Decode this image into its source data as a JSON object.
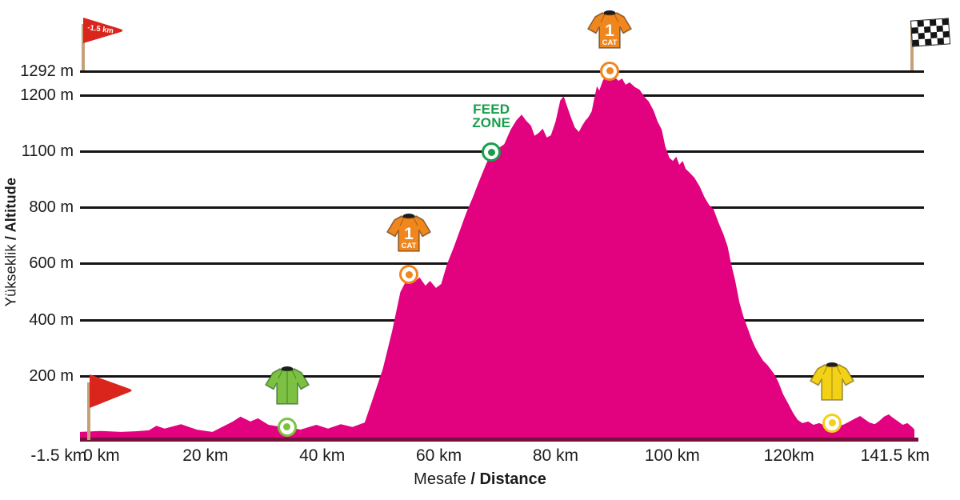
{
  "chart_data": {
    "type": "area",
    "xlabel": {
      "part1": "Mesafe",
      "part2": "/ Distance"
    },
    "ylabel": {
      "part1": "Yükseklik",
      "part2": "/ Altitude"
    },
    "x_range_km": [
      -1.5,
      141.5
    ],
    "grid": true,
    "legend": "none",
    "profile_color": "#E2017E",
    "baseline_color": "#77113B",
    "y_ticks": [
      {
        "label": "1292 m",
        "value": 1292
      },
      {
        "label": "1200 m",
        "value": 1200
      },
      {
        "label": "1100 m",
        "value": 1100
      },
      {
        "label": "800 m",
        "value": 800
      },
      {
        "label": "600 m",
        "value": 600
      },
      {
        "label": "400 m",
        "value": 400
      },
      {
        "label": "200 m",
        "value": 200
      }
    ],
    "x_ticks": [
      {
        "label": "-1.5 km",
        "km": -1.5
      },
      {
        "label": "0 km",
        "km": 0
      },
      {
        "label": "20 km",
        "km": 20
      },
      {
        "label": "40 km",
        "km": 40
      },
      {
        "label": "60 km",
        "km": 60
      },
      {
        "label": "80 km",
        "km": 80
      },
      {
        "label": "100 km",
        "km": 100
      },
      {
        "label": "120km",
        "km": 120
      },
      {
        "label": "141.5 km",
        "km": 141.5
      }
    ],
    "profile_km_m": [
      [
        -1.5,
        25
      ],
      [
        2,
        28
      ],
      [
        5.5,
        25
      ],
      [
        8,
        27
      ],
      [
        10.3,
        30
      ],
      [
        11.6,
        44
      ],
      [
        13,
        35
      ],
      [
        15.8,
        49
      ],
      [
        18.5,
        32
      ],
      [
        21.2,
        25
      ],
      [
        24.7,
        57
      ],
      [
        26,
        72
      ],
      [
        27.7,
        57
      ],
      [
        29,
        67
      ],
      [
        30.8,
        47
      ],
      [
        32.5,
        42
      ],
      [
        34,
        40
      ],
      [
        36.3,
        32
      ],
      [
        39,
        47
      ],
      [
        41,
        35
      ],
      [
        43.2,
        49
      ],
      [
        45.2,
        40
      ],
      [
        47.3,
        54
      ],
      [
        48.6,
        123
      ],
      [
        50.4,
        222
      ],
      [
        52,
        358
      ],
      [
        53.4,
        495
      ],
      [
        54.9,
        557
      ],
      [
        55.9,
        533
      ],
      [
        56.7,
        547
      ],
      [
        57.7,
        518
      ],
      [
        58.5,
        535
      ],
      [
        59.5,
        510
      ],
      [
        60.4,
        524
      ],
      [
        61.4,
        594
      ],
      [
        62.5,
        651
      ],
      [
        63.6,
        714
      ],
      [
        64.7,
        777
      ],
      [
        65.8,
        847
      ],
      [
        66.8,
        928
      ],
      [
        68,
        1019
      ],
      [
        69,
        1091
      ],
      [
        70.1,
        1103
      ],
      [
        71.2,
        1111
      ],
      [
        72.3,
        1137
      ],
      [
        73.3,
        1154
      ],
      [
        74.2,
        1164
      ],
      [
        74.9,
        1154
      ],
      [
        75.8,
        1144
      ],
      [
        76.4,
        1126
      ],
      [
        77.1,
        1131
      ],
      [
        77.8,
        1139
      ],
      [
        78.5,
        1123
      ],
      [
        79.2,
        1127
      ],
      [
        80,
        1151
      ],
      [
        80.8,
        1189
      ],
      [
        81.4,
        1197
      ],
      [
        81.9,
        1181
      ],
      [
        82.6,
        1160
      ],
      [
        83.3,
        1141
      ],
      [
        84,
        1133
      ],
      [
        84.5,
        1143
      ],
      [
        85.1,
        1153
      ],
      [
        85.6,
        1159
      ],
      [
        86.2,
        1170
      ],
      [
        86.7,
        1196
      ],
      [
        87.1,
        1231
      ],
      [
        87.5,
        1215
      ],
      [
        88.1,
        1252
      ],
      [
        88.6,
        1271
      ],
      [
        89.3,
        1290
      ],
      [
        90.1,
        1267
      ],
      [
        90.8,
        1252
      ],
      [
        91.4,
        1261
      ],
      [
        92,
        1237
      ],
      [
        92.7,
        1246
      ],
      [
        93.6,
        1228
      ],
      [
        94.4,
        1218
      ],
      [
        95.2,
        1196
      ],
      [
        96,
        1187
      ],
      [
        96.8,
        1171
      ],
      [
        97.5,
        1151
      ],
      [
        98.2,
        1137
      ],
      [
        98.8,
        1107
      ],
      [
        99.5,
        1061
      ],
      [
        100.1,
        1044
      ],
      [
        100.7,
        1066
      ],
      [
        101.2,
        1023
      ],
      [
        101.8,
        1044
      ],
      [
        102.3,
        1001
      ],
      [
        103,
        980
      ],
      [
        103.8,
        954
      ],
      [
        104.7,
        907
      ],
      [
        105.5,
        851
      ],
      [
        106.3,
        808
      ],
      [
        107.1,
        789
      ],
      [
        107.9,
        744
      ],
      [
        108.8,
        699
      ],
      [
        109.5,
        656
      ],
      [
        110.1,
        594
      ],
      [
        110.8,
        534
      ],
      [
        111.5,
        460
      ],
      [
        112.2,
        409
      ],
      [
        112.9,
        369
      ],
      [
        113.6,
        329
      ],
      [
        114.2,
        300
      ],
      [
        114.9,
        274
      ],
      [
        115.6,
        251
      ],
      [
        116.3,
        237
      ],
      [
        116.8,
        223
      ],
      [
        117.5,
        203
      ],
      [
        118.2,
        178
      ],
      [
        119,
        141
      ],
      [
        119.9,
        111
      ],
      [
        120.7,
        84
      ],
      [
        121.5,
        62
      ],
      [
        122.3,
        52
      ],
      [
        123.3,
        57
      ],
      [
        124.2,
        47
      ],
      [
        125.2,
        52
      ],
      [
        126.2,
        44
      ],
      [
        127.4,
        52
      ],
      [
        128.5,
        42
      ],
      [
        129.5,
        49
      ],
      [
        130.4,
        57
      ],
      [
        131.4,
        67
      ],
      [
        132.2,
        74
      ],
      [
        133,
        64
      ],
      [
        133.8,
        54
      ],
      [
        134.7,
        49
      ],
      [
        135.5,
        59
      ],
      [
        136.3,
        72
      ],
      [
        137.1,
        79
      ],
      [
        137.8,
        69
      ],
      [
        138.6,
        59
      ],
      [
        139.5,
        47
      ],
      [
        140.3,
        52
      ],
      [
        141.1,
        40
      ],
      [
        141.5,
        32
      ]
    ]
  },
  "markers": {
    "cat1_first": {
      "km": 54.9,
      "m": 557,
      "number": "1",
      "cat": "CAT",
      "color": "#F0861E"
    },
    "cat1_summit": {
      "km": 89.3,
      "m": 1290,
      "number": "1",
      "cat": "CAT",
      "color": "#F0861E"
    },
    "feed_zone": {
      "km": 69,
      "m": 1091,
      "label": "FEED ZONE",
      "color": "#179E4B"
    },
    "sprint_green": {
      "km": 34,
      "m": 40,
      "color": "#7CC142"
    },
    "leader_yellow": {
      "km": 127.4,
      "m": 52,
      "color": "#F2D116"
    }
  },
  "flags": {
    "neutral_start": {
      "label": "-1.5 km",
      "color": "#D9251C"
    },
    "start": {
      "color": "#D9251C"
    },
    "finish": {
      "style": "checkered"
    }
  }
}
